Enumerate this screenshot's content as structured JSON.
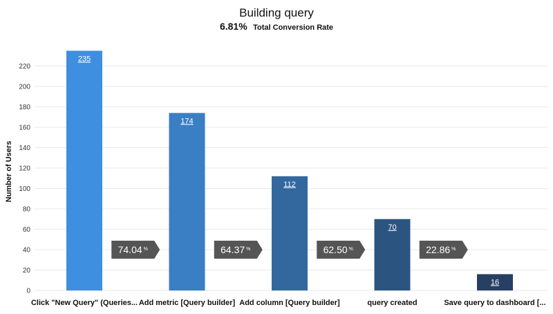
{
  "chart_data": {
    "type": "bar",
    "title": "Building query",
    "subtitle_value": "6.81%",
    "subtitle_text": "Total Conversion Rate",
    "ylabel": "Number of Users",
    "xlabel": "",
    "ylim": [
      0,
      240
    ],
    "yticks": [
      0,
      20,
      40,
      60,
      80,
      100,
      120,
      140,
      160,
      180,
      200,
      220
    ],
    "grid": true,
    "categories": [
      "Click \"New Query\" (Queries...",
      "Add metric [Query builder]",
      "Add column [Query builder]",
      "query created",
      "Save query to dashboard [..."
    ],
    "values": [
      235,
      174,
      112,
      70,
      16
    ],
    "bar_colors": [
      "#3e8fe0",
      "#3a7ec4",
      "#33689f",
      "#2c5480",
      "#263f63"
    ],
    "step_conversions": [
      "74.04",
      "64.37",
      "62.50",
      "22.86"
    ],
    "conversion_unit": "%",
    "conversion_color": "#555555"
  }
}
